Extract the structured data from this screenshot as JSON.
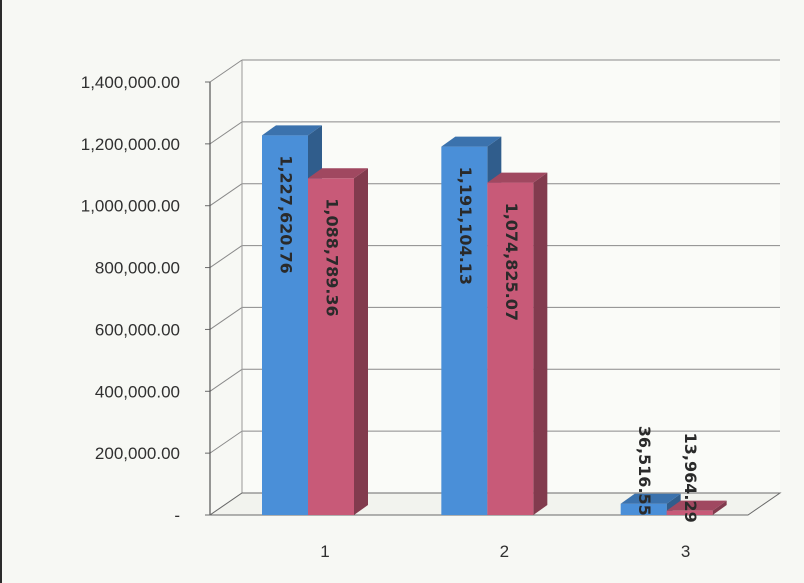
{
  "chart_data": {
    "type": "bar",
    "title": "",
    "xlabel": "",
    "ylabel": "",
    "categories": [
      "1",
      "2",
      "3"
    ],
    "series": [
      {
        "values": [
          1227620.76,
          1191104.13,
          36516.55
        ],
        "labels": [
          "1,227,620.76",
          "1,191,104.13",
          "36,516.55"
        ],
        "color": "#4a8fd8"
      },
      {
        "values": [
          1088789.36,
          1074825.07,
          13964.29
        ],
        "labels": [
          "1,088,789.36",
          "1,074,825.07",
          "13,964.29"
        ],
        "color": "#c85a78"
      }
    ],
    "ylim": [
      0,
      1400000
    ],
    "yticks": [
      0,
      200000,
      400000,
      600000,
      800000,
      1000000,
      1200000,
      1400000
    ],
    "ytick_labels": [
      "-",
      "200,000.00",
      "400,000.00",
      "600,000.00",
      "800,000.00",
      "1,000,000.00",
      "1,200,000.00",
      "1,400,000.00"
    ],
    "grid": true,
    "style": "3d-column"
  }
}
